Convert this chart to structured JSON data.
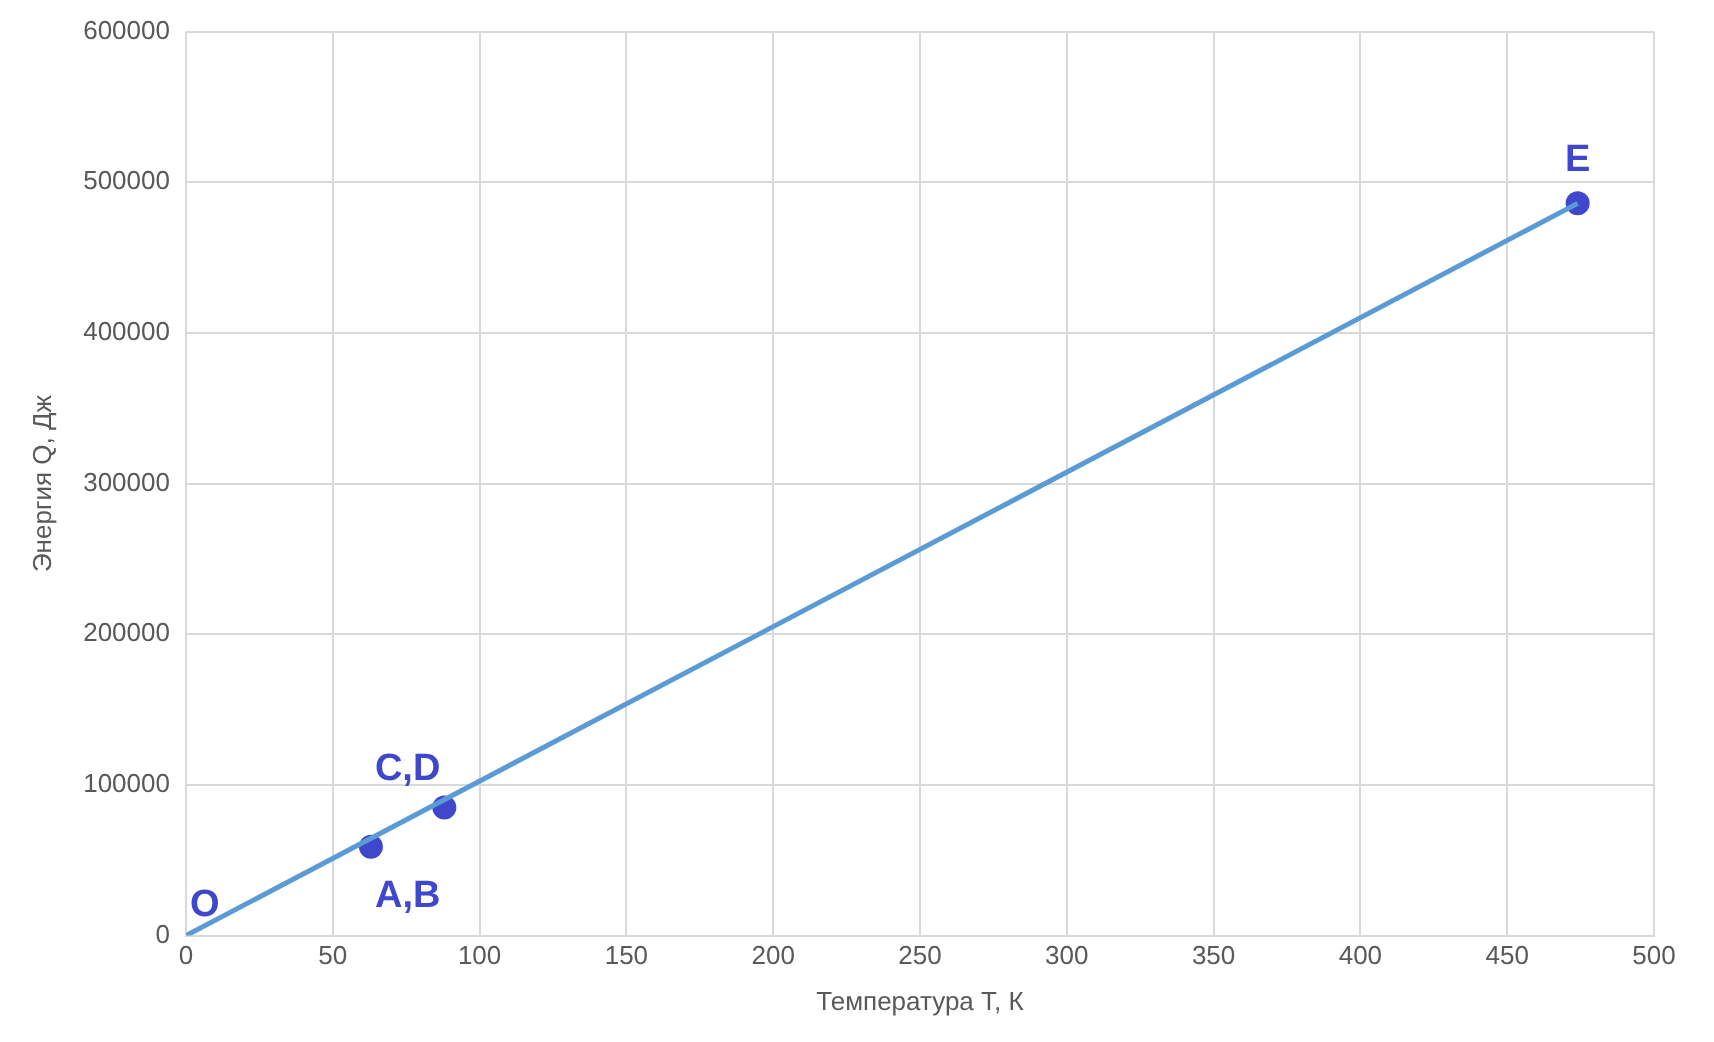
{
  "chart_data": {
    "type": "line",
    "xlabel": "Температура T, К",
    "ylabel": "Энергия Q, Дж",
    "series": [
      {
        "type": "line",
        "color": "#5b9bd5",
        "x": [
          0,
          474
        ],
        "values": [
          0,
          486000
        ],
        "marker": "none"
      },
      {
        "type": "scatter",
        "color": "#3f48cc",
        "x": [
          63,
          88,
          474
        ],
        "values": [
          59000,
          85000,
          486000
        ],
        "marker": "circle"
      }
    ],
    "annotations": [
      {
        "text": "O",
        "x": 0,
        "y": 0
      },
      {
        "text": "A,B",
        "x": 63,
        "y": 59000
      },
      {
        "text": "C,D",
        "x": 88,
        "y": 85000
      },
      {
        "text": "E",
        "x": 474,
        "y": 486000
      }
    ],
    "xlim": [
      0,
      500
    ],
    "xticks": [
      0,
      50,
      100,
      150,
      200,
      250,
      300,
      350,
      400,
      450,
      500
    ],
    "ylim": [
      0,
      600000
    ],
    "yticks": [
      0,
      100000,
      200000,
      300000,
      400000,
      500000,
      600000
    ],
    "grid": true,
    "legend": false
  }
}
